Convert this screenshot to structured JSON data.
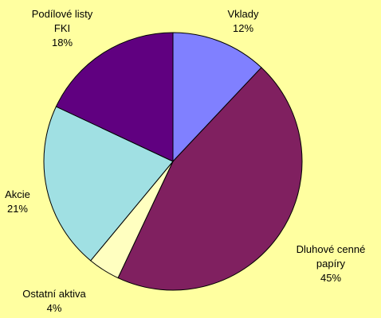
{
  "chart_data": {
    "type": "pie",
    "categories": [
      "Vklady",
      "Dluhové cenné papíry",
      "Ostatní aktiva",
      "Akcie",
      "Podílové listy FKI"
    ],
    "values": [
      12,
      45,
      4,
      21,
      18
    ],
    "value_labels": [
      "12%",
      "45%",
      "4%",
      "21%",
      "18%"
    ],
    "colors": [
      "#8080ff",
      "#802060",
      "#ffffc0",
      "#a0e0e3",
      "#600080"
    ]
  }
}
